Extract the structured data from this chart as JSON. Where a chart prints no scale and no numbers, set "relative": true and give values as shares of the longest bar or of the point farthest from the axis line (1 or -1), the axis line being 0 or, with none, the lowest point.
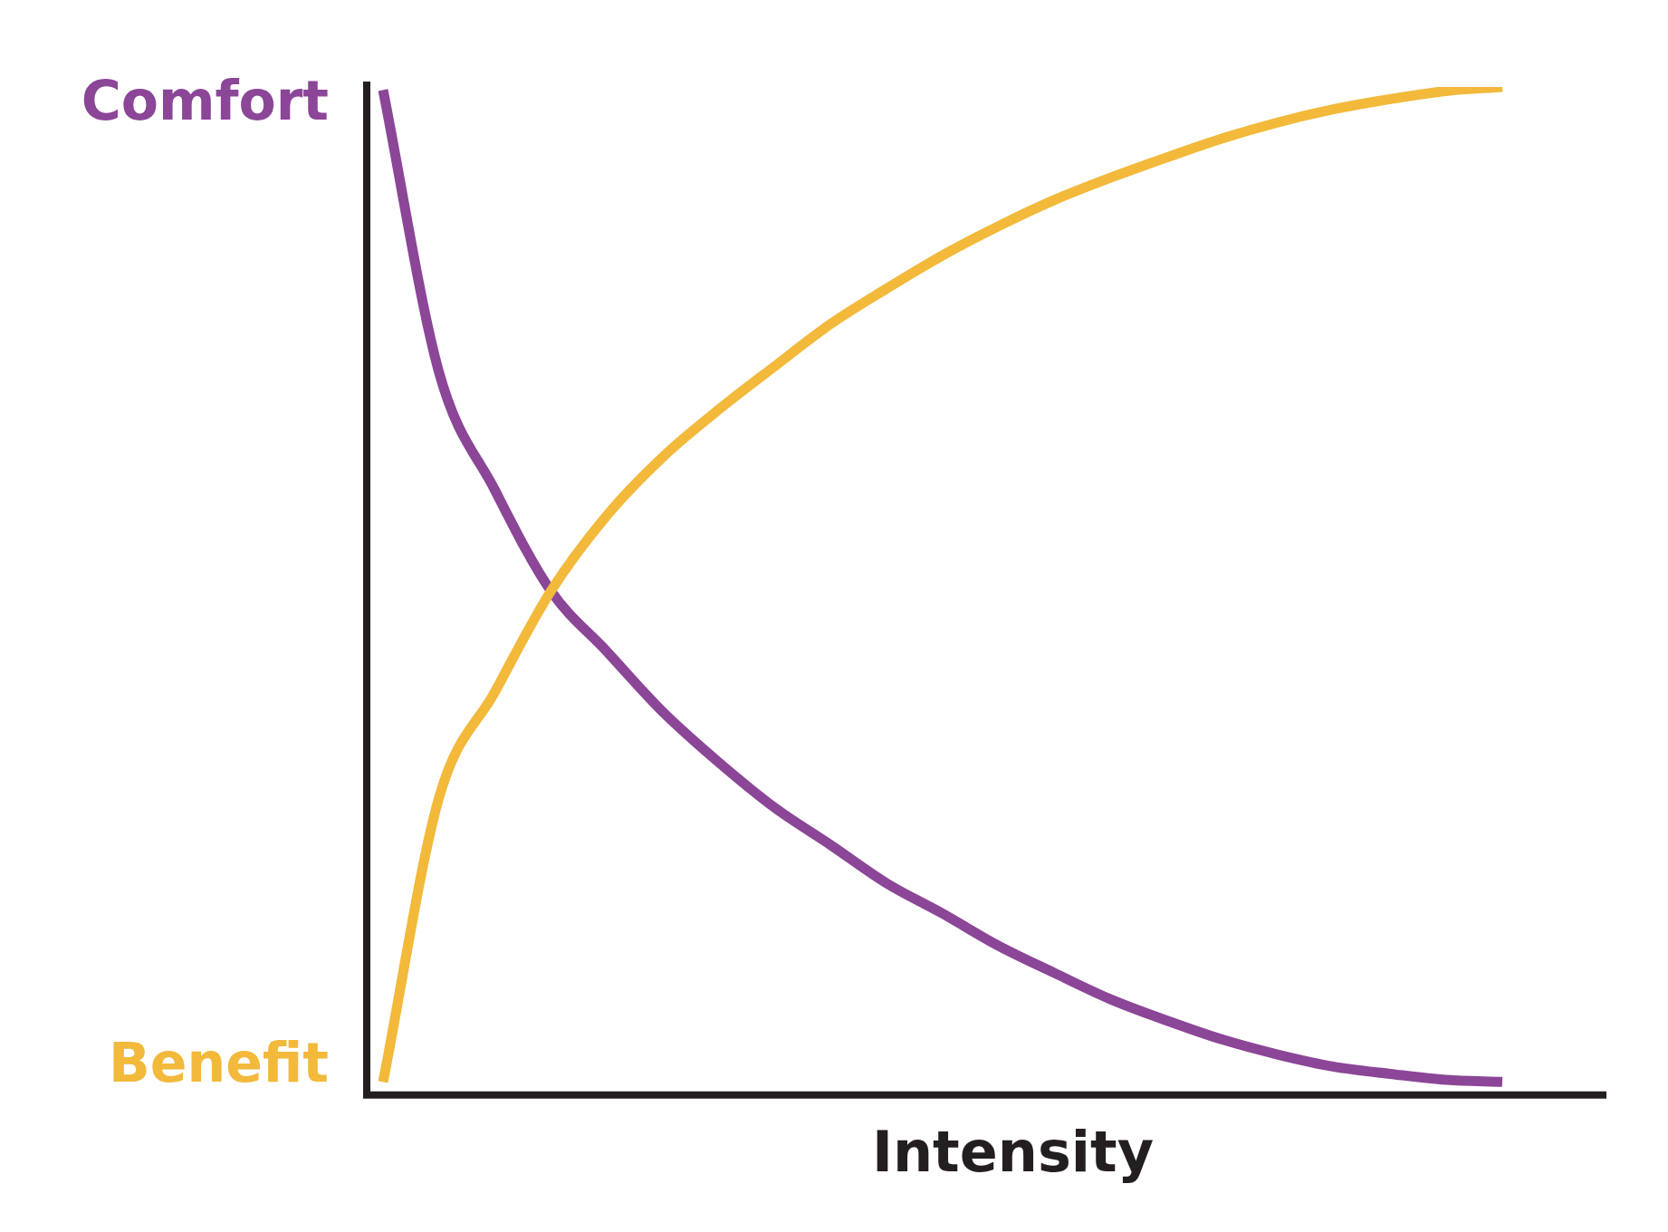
{
  "chart_data": {
    "type": "line",
    "relative": true,
    "xlabel": "Intensity",
    "legend": false,
    "grid": false,
    "marker": "none",
    "line_style": "solid",
    "categories": [
      null,
      null,
      null,
      null,
      null,
      null,
      null,
      null,
      null,
      null,
      null,
      null,
      null,
      null,
      null,
      null,
      null,
      null,
      null,
      null,
      null
    ],
    "series": [
      {
        "name": "Benefit",
        "color": "#f2b93b",
        "values": [
          0.013,
          0.295,
          0.4,
          0.5,
          0.575,
          0.633,
          0.68,
          0.723,
          0.765,
          0.8,
          0.833,
          0.862,
          0.888,
          0.91,
          0.93,
          0.949,
          0.965,
          0.978,
          0.988,
          0.996,
          1
        ]
      },
      {
        "name": "Comfort",
        "color": "#8b4697",
        "values": [
          0.997,
          0.717,
          0.6,
          0.5,
          0.44,
          0.38,
          0.33,
          0.285,
          0.248,
          0.21,
          0.18,
          0.148,
          0.121,
          0.095,
          0.074,
          0.055,
          0.04,
          0.028,
          0.021,
          0.015,
          0.013
        ]
      }
    ]
  }
}
